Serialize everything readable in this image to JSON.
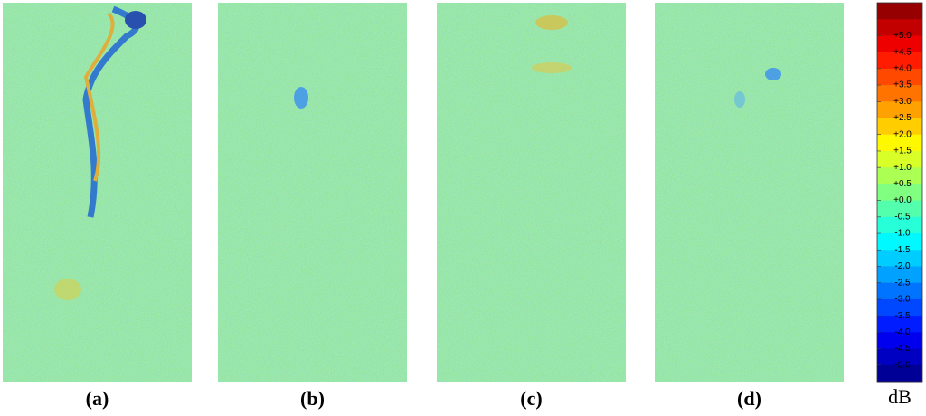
{
  "panels": [
    {
      "label": "(a)"
    },
    {
      "label": "(b)"
    },
    {
      "label": "(c)"
    },
    {
      "label": "(d)"
    }
  ],
  "colorbar": {
    "unit": "dB",
    "lim": [
      -5.5,
      6
    ],
    "ticks": [
      {
        "value": 5,
        "label": "+5.0"
      },
      {
        "value": 4.5,
        "label": "+4.5"
      },
      {
        "value": 4,
        "label": "+4.0"
      },
      {
        "value": 3.5,
        "label": "+3.5"
      },
      {
        "value": 3,
        "label": "+3.0"
      },
      {
        "value": 2.5,
        "label": "+2.5"
      },
      {
        "value": 2,
        "label": "+2.0"
      },
      {
        "value": 1.5,
        "label": "+1.5"
      },
      {
        "value": 1,
        "label": "+1.0"
      },
      {
        "value": 0.5,
        "label": "+0.5"
      },
      {
        "value": 0,
        "label": "+0.0"
      },
      {
        "value": -0.5,
        "label": "-0.5"
      },
      {
        "value": -1,
        "label": "-1.0"
      },
      {
        "value": -1.5,
        "label": "-1.5"
      },
      {
        "value": -2,
        "label": "-2.0"
      },
      {
        "value": -2.5,
        "label": "-2.5"
      },
      {
        "value": -3,
        "label": "-3.0"
      },
      {
        "value": -3.5,
        "label": "-3.5"
      },
      {
        "value": -4,
        "label": "-4.0"
      },
      {
        "value": -4.5,
        "label": "-4.5"
      },
      {
        "value": -5,
        "label": "-5.0"
      }
    ]
  }
}
